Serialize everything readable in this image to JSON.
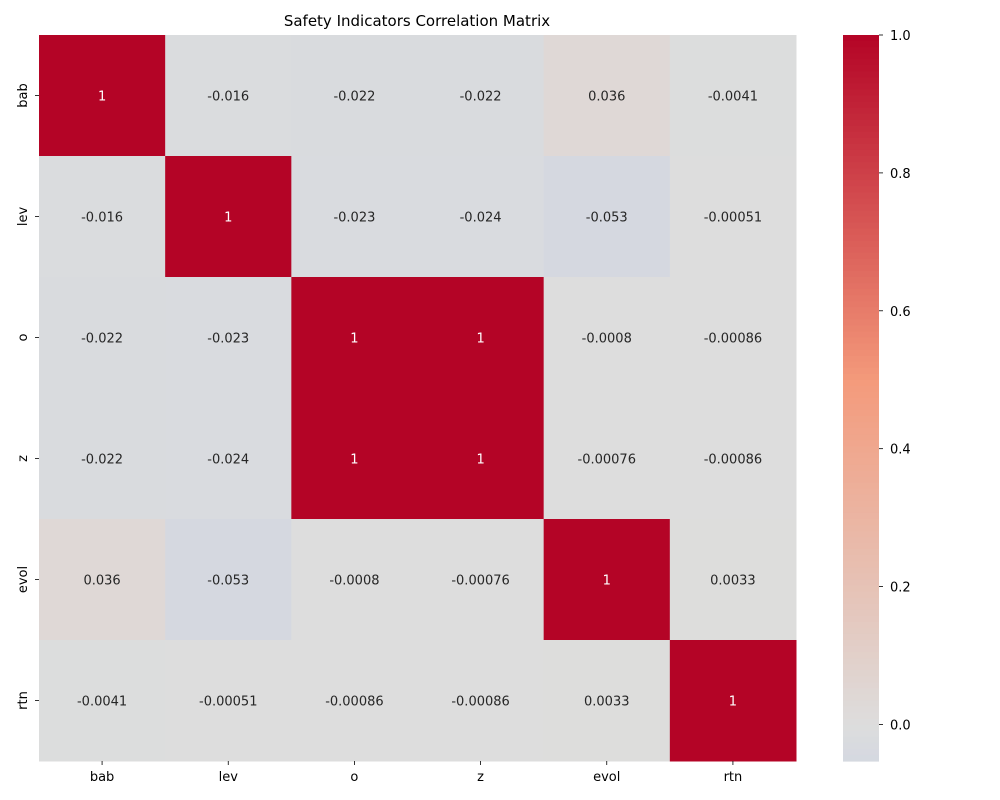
{
  "chart_data": {
    "type": "heatmap",
    "title": "Safety Indicators Correlation Matrix",
    "xlabel": "",
    "ylabel": "",
    "x_categories": [
      "bab",
      "lev",
      "o",
      "z",
      "evol",
      "rtn"
    ],
    "y_categories": [
      "bab",
      "lev",
      "o",
      "z",
      "evol",
      "rtn"
    ],
    "values": [
      [
        1,
        -0.016,
        -0.022,
        -0.022,
        0.036,
        -0.0041
      ],
      [
        -0.016,
        1,
        -0.023,
        -0.024,
        -0.053,
        -0.00051
      ],
      [
        -0.022,
        -0.023,
        1,
        1,
        -0.0008,
        -0.00086
      ],
      [
        -0.022,
        -0.024,
        1,
        1,
        -0.00076,
        -0.00086
      ],
      [
        0.036,
        -0.053,
        -0.0008,
        -0.00076,
        1,
        0.0033
      ],
      [
        -0.0041,
        -0.00051,
        -0.00086,
        -0.00086,
        0.0033,
        1
      ]
    ],
    "cell_labels": [
      [
        "1",
        "-0.016",
        "-0.022",
        "-0.022",
        "0.036",
        "-0.0041"
      ],
      [
        "-0.016",
        "1",
        "-0.023",
        "-0.024",
        "-0.053",
        "-0.00051"
      ],
      [
        "-0.022",
        "-0.023",
        "1",
        "1",
        "-0.0008",
        "-0.00086"
      ],
      [
        "-0.022",
        "-0.024",
        "1",
        "1",
        "-0.00076",
        "-0.00086"
      ],
      [
        "0.036",
        "-0.053",
        "-0.0008",
        "-0.00076",
        "1",
        "0.0033"
      ],
      [
        "-0.0041",
        "-0.00051",
        "-0.00086",
        "-0.00086",
        "0.0033",
        "1"
      ]
    ],
    "colormap": "coolwarm",
    "color_center": 0,
    "colorbar": {
      "range": [
        -0.053,
        1.0
      ],
      "ticks": [
        0.0,
        0.2,
        0.4,
        0.6,
        0.8,
        1.0
      ],
      "tick_labels": [
        "0.0",
        "0.2",
        "0.4",
        "0.6",
        "0.8",
        "1.0"
      ]
    },
    "grid": false,
    "legend": "colorbar-right"
  }
}
